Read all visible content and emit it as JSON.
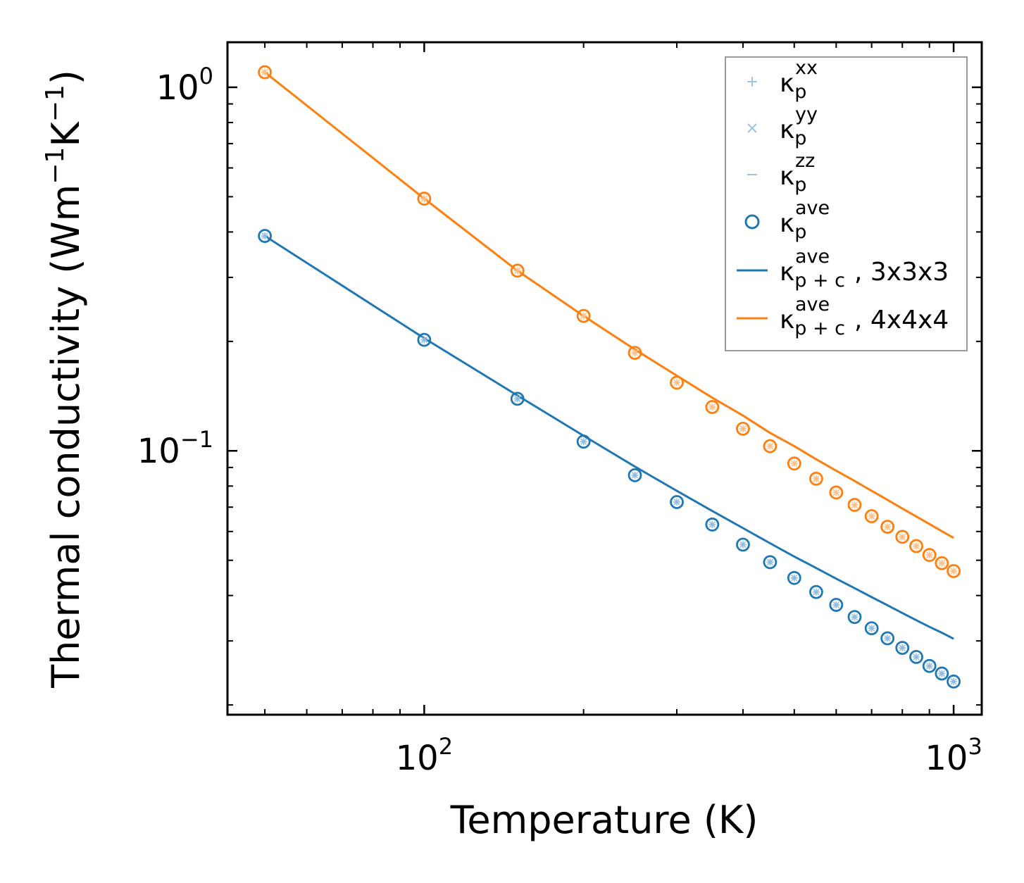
{
  "chart_data": {
    "type": "scatter",
    "xscale": "log",
    "yscale": "log",
    "xlim": [
      42.5,
      1130
    ],
    "ylim": [
      0.0188,
      1.33
    ],
    "xlabel": "Temperature (K)",
    "ylabel": {
      "base": "Thermal conductivity (Wm",
      "sup1": "−1",
      "mid": "K",
      "sup2": "−1",
      "end": ")"
    },
    "x_ticks": [
      {
        "value": 100,
        "base": "10",
        "exp": "2"
      },
      {
        "value": 1000,
        "base": "10",
        "exp": "3"
      }
    ],
    "y_ticks": [
      {
        "value": 1,
        "base": "10",
        "exp": "0"
      },
      {
        "value": 0.1,
        "base": "10",
        "exp": "−1"
      }
    ],
    "legend": [
      {
        "kind": "plus",
        "sym": "κ",
        "sub": "p",
        "sup": "xx",
        "tail": "",
        "color": "#9ec4e4"
      },
      {
        "kind": "cross",
        "sym": "κ",
        "sub": "p",
        "sup": "yy",
        "tail": "",
        "color": "#9ec4e4"
      },
      {
        "kind": "dash",
        "sym": "κ",
        "sub": "p",
        "sup": "zz",
        "tail": "",
        "color": "#9ec4e4"
      },
      {
        "kind": "circle",
        "sym": "κ",
        "sub": "p",
        "sup": "ave",
        "tail": "",
        "color": "#1f77b4"
      },
      {
        "kind": "line",
        "sym": "κ",
        "sub": "p + c",
        "sup": "ave",
        "tail": ", 3x3x3",
        "color": "#1f77b4"
      },
      {
        "kind": "line",
        "sym": "κ",
        "sub": "p + c",
        "sup": "ave",
        "tail": ", 4x4x4",
        "color": "#ff7f0e"
      }
    ],
    "legend_position": "upper right",
    "series": [
      {
        "name": "3x3x3",
        "color": "#1f77b4",
        "x": [
          50,
          100,
          150,
          200,
          250,
          300,
          350,
          400,
          450,
          500,
          550,
          600,
          650,
          700,
          750,
          800,
          850,
          900,
          950,
          1000
        ],
        "points": [
          0.39,
          0.202,
          0.139,
          0.106,
          0.0857,
          0.0723,
          0.0627,
          0.0552,
          0.0494,
          0.0447,
          0.0409,
          0.0377,
          0.0349,
          0.0325,
          0.0305,
          0.0287,
          0.0271,
          0.0256,
          0.0244,
          0.0232
        ],
        "fit": [
          0.39,
          0.204,
          0.142,
          0.11,
          0.0905,
          0.0776,
          0.0683,
          0.0613,
          0.0557,
          0.0512,
          0.0476,
          0.0445,
          0.0419,
          0.0396,
          0.0376,
          0.0358,
          0.0342,
          0.0328,
          0.0316,
          0.0304
        ]
      },
      {
        "name": "4x4x4",
        "color": "#ff7f0e",
        "x": [
          50,
          100,
          150,
          200,
          250,
          300,
          350,
          400,
          450,
          500,
          550,
          600,
          650,
          700,
          750,
          800,
          850,
          900,
          950,
          1000
        ],
        "points": [
          1.1,
          0.494,
          0.313,
          0.235,
          0.186,
          0.154,
          0.132,
          0.115,
          0.103,
          0.0923,
          0.0838,
          0.0768,
          0.071,
          0.0661,
          0.0618,
          0.058,
          0.0547,
          0.0517,
          0.0491,
          0.0467
        ],
        "fit": [
          1.1,
          0.494,
          0.313,
          0.235,
          0.19,
          0.161,
          0.14,
          0.125,
          0.112,
          0.103,
          0.0948,
          0.0882,
          0.0826,
          0.0776,
          0.0733,
          0.0694,
          0.066,
          0.0629,
          0.0601,
          0.0576
        ]
      }
    ]
  }
}
